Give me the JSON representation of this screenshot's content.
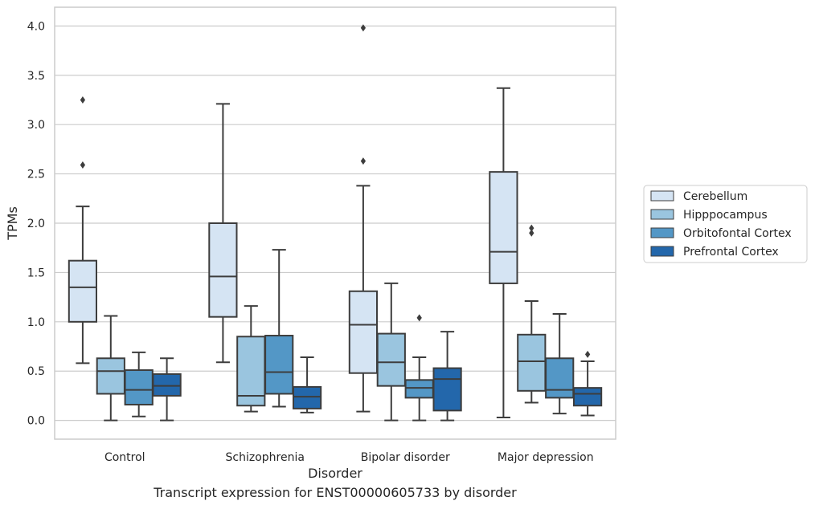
{
  "chart_data": {
    "type": "box",
    "title": "",
    "xlabel": "Disorder",
    "ylabel": "TPMs",
    "ylim": [
      -0.19,
      4.19
    ],
    "yticks": [
      0.0,
      0.5,
      1.0,
      1.5,
      2.0,
      2.5,
      3.0,
      3.5,
      4.0
    ],
    "ytick_labels": [
      "0.0",
      "0.5",
      "1.0",
      "1.5",
      "2.0",
      "2.5",
      "3.0",
      "3.5",
      "4.0"
    ],
    "grid": "horizontal",
    "legend_position": "right",
    "categories": [
      "Control",
      "Schizophrenia",
      "Bipolar disorder",
      "Major depression"
    ],
    "series": [
      {
        "name": "Cerebellum",
        "color": "#d5e4f3",
        "boxes": [
          {
            "whisker_low": 0.58,
            "q1": 1.0,
            "median": 1.35,
            "q3": 1.62,
            "whisker_high": 2.17,
            "outliers": [
              2.59,
              3.25
            ]
          },
          {
            "whisker_low": 0.59,
            "q1": 1.05,
            "median": 1.46,
            "q3": 2.0,
            "whisker_high": 3.21,
            "outliers": []
          },
          {
            "whisker_low": 0.09,
            "q1": 0.48,
            "median": 0.97,
            "q3": 1.31,
            "whisker_high": 2.38,
            "outliers": [
              2.63,
              3.98
            ]
          },
          {
            "whisker_low": 0.03,
            "q1": 1.39,
            "median": 1.71,
            "q3": 2.52,
            "whisker_high": 3.37,
            "outliers": []
          }
        ]
      },
      {
        "name": "Hipppocampus",
        "color": "#9ac5df",
        "boxes": [
          {
            "whisker_low": 0.0,
            "q1": 0.27,
            "median": 0.5,
            "q3": 0.63,
            "whisker_high": 1.06,
            "outliers": []
          },
          {
            "whisker_low": 0.09,
            "q1": 0.15,
            "median": 0.25,
            "q3": 0.85,
            "whisker_high": 1.16,
            "outliers": []
          },
          {
            "whisker_low": 0.0,
            "q1": 0.35,
            "median": 0.59,
            "q3": 0.88,
            "whisker_high": 1.39,
            "outliers": []
          },
          {
            "whisker_low": 0.18,
            "q1": 0.3,
            "median": 0.6,
            "q3": 0.87,
            "whisker_high": 1.21,
            "outliers": [
              1.9,
              1.95
            ]
          }
        ]
      },
      {
        "name": "Orbitofontal Cortex",
        "color": "#5397c6",
        "boxes": [
          {
            "whisker_low": 0.04,
            "q1": 0.16,
            "median": 0.31,
            "q3": 0.51,
            "whisker_high": 0.69,
            "outliers": []
          },
          {
            "whisker_low": 0.14,
            "q1": 0.27,
            "median": 0.49,
            "q3": 0.86,
            "whisker_high": 1.73,
            "outliers": []
          },
          {
            "whisker_low": 0.0,
            "q1": 0.23,
            "median": 0.33,
            "q3": 0.41,
            "whisker_high": 0.64,
            "outliers": [
              1.04
            ]
          },
          {
            "whisker_low": 0.07,
            "q1": 0.23,
            "median": 0.31,
            "q3": 0.63,
            "whisker_high": 1.08,
            "outliers": []
          }
        ]
      },
      {
        "name": "Prefrontal Cortex",
        "color": "#2367ab",
        "boxes": [
          {
            "whisker_low": 0.0,
            "q1": 0.25,
            "median": 0.35,
            "q3": 0.47,
            "whisker_high": 0.63,
            "outliers": []
          },
          {
            "whisker_low": 0.08,
            "q1": 0.12,
            "median": 0.24,
            "q3": 0.34,
            "whisker_high": 0.64,
            "outliers": []
          },
          {
            "whisker_low": 0.0,
            "q1": 0.1,
            "median": 0.42,
            "q3": 0.53,
            "whisker_high": 0.9,
            "outliers": []
          },
          {
            "whisker_low": 0.05,
            "q1": 0.15,
            "median": 0.27,
            "q3": 0.33,
            "whisker_high": 0.6,
            "outliers": [
              0.67
            ]
          }
        ]
      }
    ]
  },
  "caption": "Transcript expression for ENST00000605733 by disorder"
}
